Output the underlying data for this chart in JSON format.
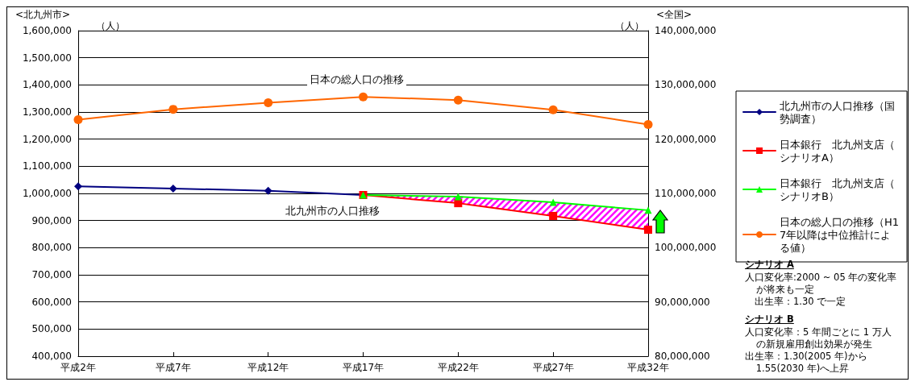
{
  "chart_data": {
    "type": "line",
    "ylabel": "<北九州市>",
    "y2label": "<全国>",
    "categories": [
      "平成2年",
      "平成7年",
      "平成12年",
      "平成17年",
      "平成22年",
      "平成27年",
      "平成32年"
    ],
    "series": [
      {
        "name": "北九州市の人口推移（国勢調査）",
        "color": "#000080",
        "marker": "diamond",
        "values": [
          1026000,
          1018000,
          1010000,
          994000,
          null,
          null,
          null
        ]
      },
      {
        "name": "日本銀行　北九州支店（シナリオA）",
        "color": "#ff0000",
        "marker": "square",
        "values": [
          null,
          null,
          null,
          994000,
          964000,
          917000,
          866000
        ]
      },
      {
        "name": "日本銀行　北九州支店（シナリオB）",
        "color": "#00ff00",
        "marker": "triangle",
        "values": [
          null,
          null,
          null,
          994000,
          988000,
          967000,
          938000
        ],
        "lower": [
          null,
          null,
          null,
          994000,
          964000,
          917000,
          866000
        ],
        "upper": [
          null,
          null,
          null,
          994000,
          988000,
          967000,
          938000
        ]
      },
      {
        "name": "日本の総人口の推移（H17年以降は中位推計による値）",
        "color": "#ff6600",
        "marker": "circle",
        "axis": "y2",
        "values": [
          123600000,
          125500000,
          126700000,
          127800000,
          127200000,
          125400000,
          122700000
        ]
      }
    ],
    "ylim": [
      400000,
      1600000
    ],
    "yticks": [
      {
        "value": 400000,
        "label": "400,000"
      },
      {
        "value": 500000,
        "label": "500,000"
      },
      {
        "value": 600000,
        "label": "600,000"
      },
      {
        "value": 700000,
        "label": "700,000"
      },
      {
        "value": 800000,
        "label": "800,000"
      },
      {
        "value": 900000,
        "label": "900,000"
      },
      {
        "value": 1000000,
        "label": "1,000,000"
      },
      {
        "value": 1100000,
        "label": "1,100,000"
      },
      {
        "value": 1200000,
        "label": "1,200,000"
      },
      {
        "value": 1300000,
        "label": "1,300,000"
      },
      {
        "value": 1400000,
        "label": "1,400,000"
      },
      {
        "value": 1500000,
        "label": "1,500,000"
      },
      {
        "value": 1600000,
        "label": "1,600,000"
      }
    ],
    "y2lim": [
      80000000,
      140000000
    ],
    "y2ticks": [
      {
        "value": 80000000,
        "label": "80,000,000"
      },
      {
        "value": 90000000,
        "label": "90,000,000"
      },
      {
        "value": 100000000,
        "label": "100,000,000"
      },
      {
        "value": 110000000,
        "label": "110,000,000"
      },
      {
        "value": 120000000,
        "label": "120,000,000"
      },
      {
        "value": 130000000,
        "label": "130,000,000"
      },
      {
        "value": 140000000,
        "label": "140,000,000"
      }
    ],
    "grid": "y",
    "legend": "right",
    "line_style": "solid",
    "annotations": [
      "（人）",
      "（人）",
      "日本の総人口の推移",
      "北九州市の人口推移",
      "シナリオ A",
      "人口変化率:2000 ~ 05 年の変化率が将来も一定",
      "出生率：1.30 で一定",
      "シナリオ B",
      "人口変化率：5 年間ごとに 1 万人の新規雇用創出効果が発生",
      "出生率：1.30(2005 年)から 1.55(2030 年)へ上昇"
    ]
  }
}
